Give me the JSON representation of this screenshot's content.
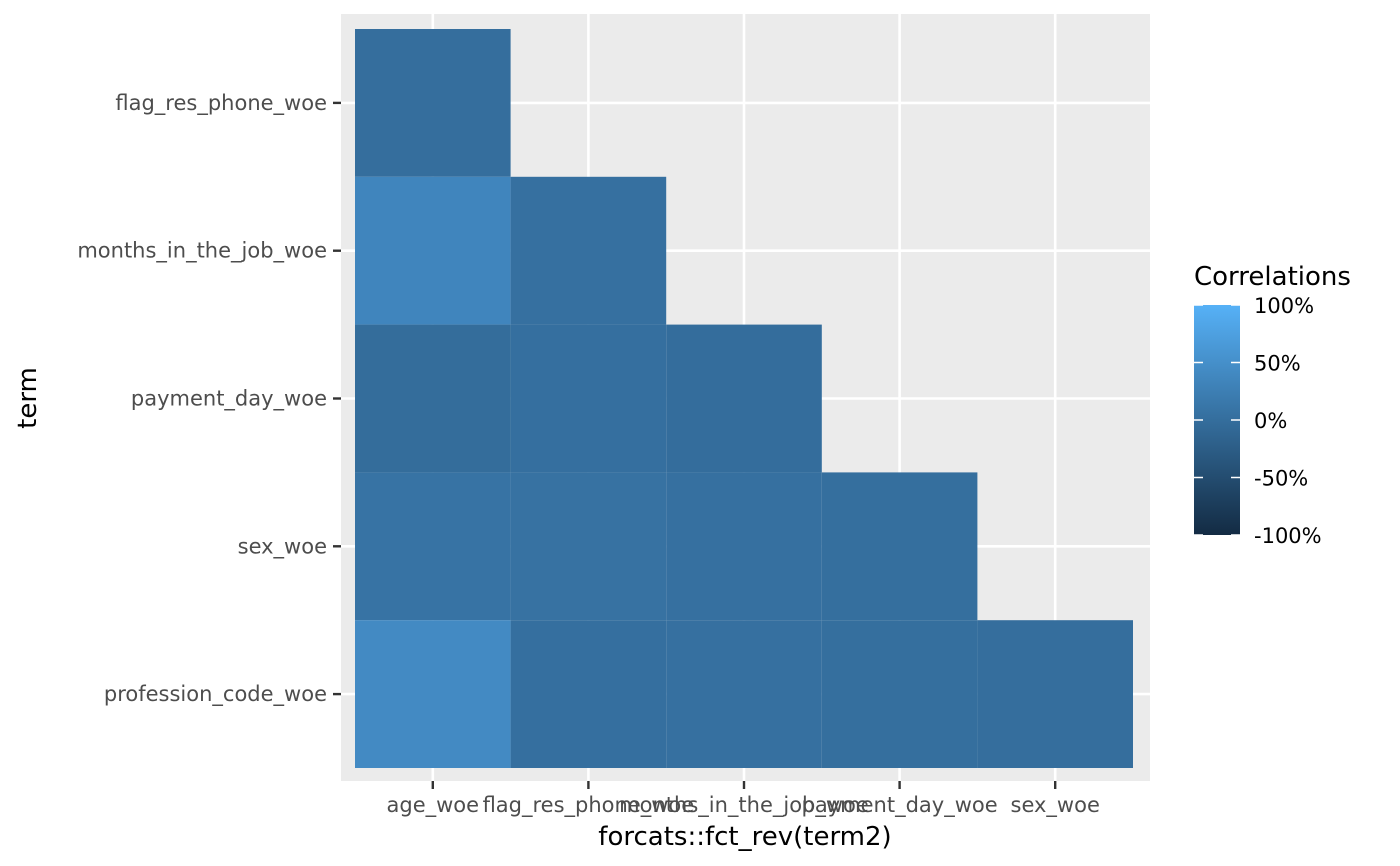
{
  "chart_data": {
    "type": "heatmap",
    "xlabel": "forcats::fct_rev(term2)",
    "ylabel": "term",
    "x_categories": [
      "age_woe",
      "flag_res_phone_woe",
      "months_in_the_job_woe",
      "payment_day_woe",
      "sex_woe"
    ],
    "y_categories": [
      "flag_res_phone_woe",
      "months_in_the_job_woe",
      "payment_day_woe",
      "sex_woe",
      "profession_code_woe"
    ],
    "cells": [
      {
        "x": "age_woe",
        "y": "flag_res_phone_woe",
        "value": 0.0
      },
      {
        "x": "age_woe",
        "y": "months_in_the_job_woe",
        "value": 0.35
      },
      {
        "x": "flag_res_phone_woe",
        "y": "months_in_the_job_woe",
        "value": 0.03
      },
      {
        "x": "age_woe",
        "y": "payment_day_woe",
        "value": -0.02
      },
      {
        "x": "flag_res_phone_woe",
        "y": "payment_day_woe",
        "value": 0.02
      },
      {
        "x": "months_in_the_job_woe",
        "y": "payment_day_woe",
        "value": -0.01
      },
      {
        "x": "age_woe",
        "y": "sex_woe",
        "value": 0.08
      },
      {
        "x": "flag_res_phone_woe",
        "y": "sex_woe",
        "value": 0.06
      },
      {
        "x": "months_in_the_job_woe",
        "y": "sex_woe",
        "value": 0.03
      },
      {
        "x": "payment_day_woe",
        "y": "sex_woe",
        "value": 0.01
      },
      {
        "x": "age_woe",
        "y": "profession_code_woe",
        "value": 0.42
      },
      {
        "x": "flag_res_phone_woe",
        "y": "profession_code_woe",
        "value": 0.02
      },
      {
        "x": "months_in_the_job_woe",
        "y": "profession_code_woe",
        "value": 0.03
      },
      {
        "x": "payment_day_woe",
        "y": "profession_code_woe",
        "value": 0.01
      },
      {
        "x": "sex_woe",
        "y": "profession_code_woe",
        "value": 0.0
      }
    ],
    "legend": {
      "title": "Correlations",
      "labels": [
        "100%",
        "50%",
        "0%",
        "-50%",
        "-100%"
      ],
      "values": [
        1,
        0.5,
        0,
        -0.5,
        -1
      ],
      "low_color": "#132b43",
      "high_color": "#56b1f7",
      "placement": "right"
    },
    "grid": true,
    "panel_color": "#ebebeb"
  }
}
